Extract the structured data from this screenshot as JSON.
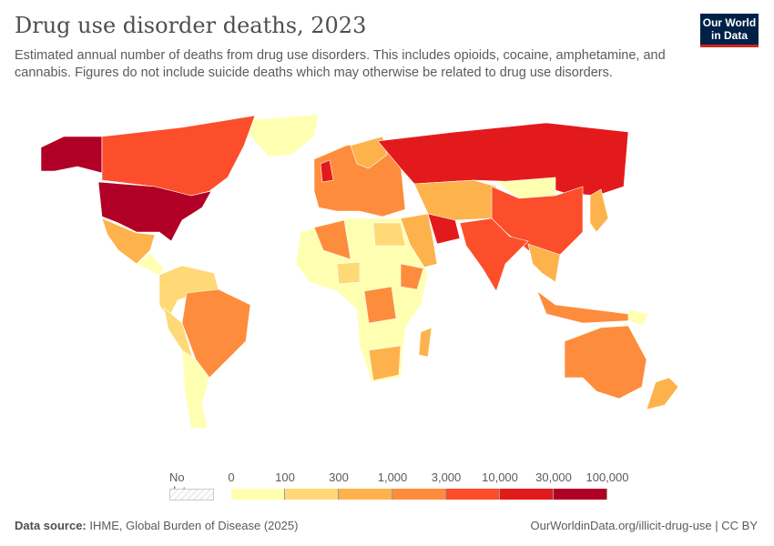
{
  "header": {
    "title": "Drug use disorder deaths, 2023",
    "subtitle": "Estimated annual number of deaths from drug use disorders. This includes opioids, cocaine, amphetamine, and cannabis. Figures do not include suicide deaths which may otherwise be related to drug use disorders.",
    "logo_line1": "Our World",
    "logo_line2": "in Data"
  },
  "legend": {
    "no_data_label": "No data",
    "ticks": [
      "0",
      "100",
      "300",
      "1,000",
      "3,000",
      "10,000",
      "30,000",
      "100,000"
    ],
    "colors": [
      "#ffffb2",
      "#fed976",
      "#feb24c",
      "#fd8d3c",
      "#fc4e2a",
      "#e31a1c",
      "#b10026"
    ]
  },
  "footer": {
    "source_label": "Data source:",
    "source_text": "IHME, Global Burden of Disease (2025)",
    "url": "OurWorldinData.org/illicit-drug-use | CC BY"
  }
}
